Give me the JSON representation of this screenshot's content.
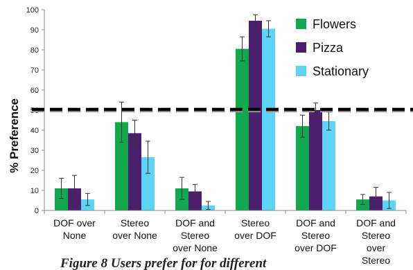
{
  "chart_data": {
    "type": "bar",
    "title": "",
    "xlabel": "",
    "ylabel": "% Preference",
    "ylim": [
      0,
      100
    ],
    "yticks": [
      0,
      10,
      20,
      30,
      40,
      50,
      60,
      70,
      80,
      90,
      100
    ],
    "grid": false,
    "legend_position": "top-right",
    "categories": [
      [
        "DOF over",
        "None"
      ],
      [
        "Stereo",
        "over None"
      ],
      [
        "DOF and",
        "Stereo",
        "over None"
      ],
      [
        "Stereo",
        "over DOF"
      ],
      [
        "DOF and",
        "Stereo",
        "over DOF"
      ],
      [
        "DOF and",
        "Stereo",
        "over",
        "Stereo"
      ]
    ],
    "series": [
      {
        "name": "Flowers",
        "color": "#12a84e",
        "values": [
          11,
          44,
          11,
          80.5,
          42,
          5.5
        ],
        "errors": [
          5,
          10,
          5.5,
          6,
          5.5,
          2.5
        ]
      },
      {
        "name": "Pizza",
        "color": "#4b1e6e",
        "values": [
          11,
          38.5,
          9.5,
          94.5,
          50,
          7
        ],
        "errors": [
          6.5,
          6.5,
          3.5,
          3,
          3.5,
          4.5
        ]
      },
      {
        "name": "Stationary",
        "color": "#5dd3f6",
        "values": [
          5.5,
          26.5,
          2.5,
          90.5,
          44.5,
          5
        ],
        "errors": [
          3,
          8,
          2,
          4,
          4.5,
          4
        ]
      }
    ],
    "reference_line": {
      "value": 50,
      "style": "dashed",
      "color": "#000000"
    }
  },
  "caption": "Figure 8 Users prefer for for different"
}
